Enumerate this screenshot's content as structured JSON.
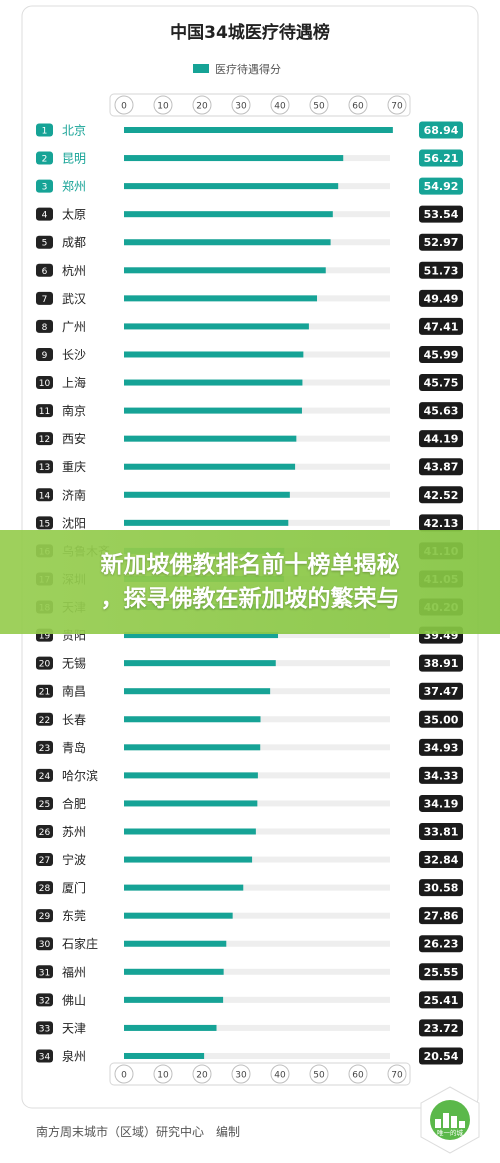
{
  "chart_data": {
    "type": "bar",
    "orientation": "horizontal",
    "title": "中国34城医疗待遇榜",
    "legend": "医疗待遇得分",
    "xlim": [
      0,
      70
    ],
    "ticks": [
      "0",
      "10",
      "20",
      "30",
      "40",
      "50",
      "60",
      "70"
    ],
    "ranks": [
      "1",
      "2",
      "3",
      "4",
      "5",
      "6",
      "7",
      "8",
      "9",
      "10",
      "11",
      "12",
      "13",
      "14",
      "15",
      "16",
      "17",
      "18",
      "19",
      "20",
      "21",
      "22",
      "23",
      "24",
      "25",
      "26",
      "27",
      "28",
      "29",
      "30",
      "31",
      "32",
      "33",
      "34"
    ],
    "categories": [
      "北京",
      "昆明",
      "郑州",
      "太原",
      "成都",
      "杭州",
      "武汉",
      "广州",
      "长沙",
      "上海",
      "南京",
      "西安",
      "重庆",
      "济南",
      "沈阳",
      "乌鲁木齐",
      "深圳",
      "天津",
      "贵阳",
      "无锡",
      "南昌",
      "长春",
      "青岛",
      "哈尔滨",
      "合肥",
      "苏州",
      "宁波",
      "厦门",
      "东莞",
      "石家庄",
      "福州",
      "佛山",
      "天津",
      "泉州"
    ],
    "values": [
      68.94,
      56.21,
      54.92,
      53.54,
      52.97,
      51.73,
      49.49,
      47.41,
      45.99,
      45.75,
      45.63,
      44.19,
      43.87,
      42.52,
      42.13,
      41.1,
      41.05,
      40.2,
      39.49,
      38.91,
      37.47,
      35.0,
      34.93,
      34.33,
      34.19,
      33.81,
      32.84,
      30.58,
      27.86,
      26.23,
      25.55,
      25.41,
      23.72,
      20.54
    ],
    "labels": [
      "68.94",
      "56.21",
      "54.92",
      "53.54",
      "52.97",
      "51.73",
      "49.49",
      "47.41",
      "45.99",
      "45.75",
      "45.63",
      "44.19",
      "43.87",
      "42.52",
      "42.13",
      "41.10",
      "41.05",
      "40.20",
      "39.49",
      "38.91",
      "37.47",
      "35.00",
      "34.93",
      "34.33",
      "34.19",
      "33.81",
      "32.84",
      "30.58",
      "27.86",
      "26.23",
      "25.55",
      "25.41",
      "23.72",
      "20.54"
    ],
    "highlight_count": 3,
    "colors": {
      "bar": "#16a396",
      "track": "#eeeeee",
      "highlight_label": "#16a396",
      "value_box_top": "#16a396",
      "value_box": "#1b1b1b"
    }
  },
  "overlay": {
    "line1": "新加坡佛教排名前十榜单揭秘",
    "line2": "，探寻佛教在新加坡的繁荣与"
  },
  "footer": {
    "source": "南方周末城市（区域）研究中心　编制",
    "logo_text": "唯一的城"
  }
}
